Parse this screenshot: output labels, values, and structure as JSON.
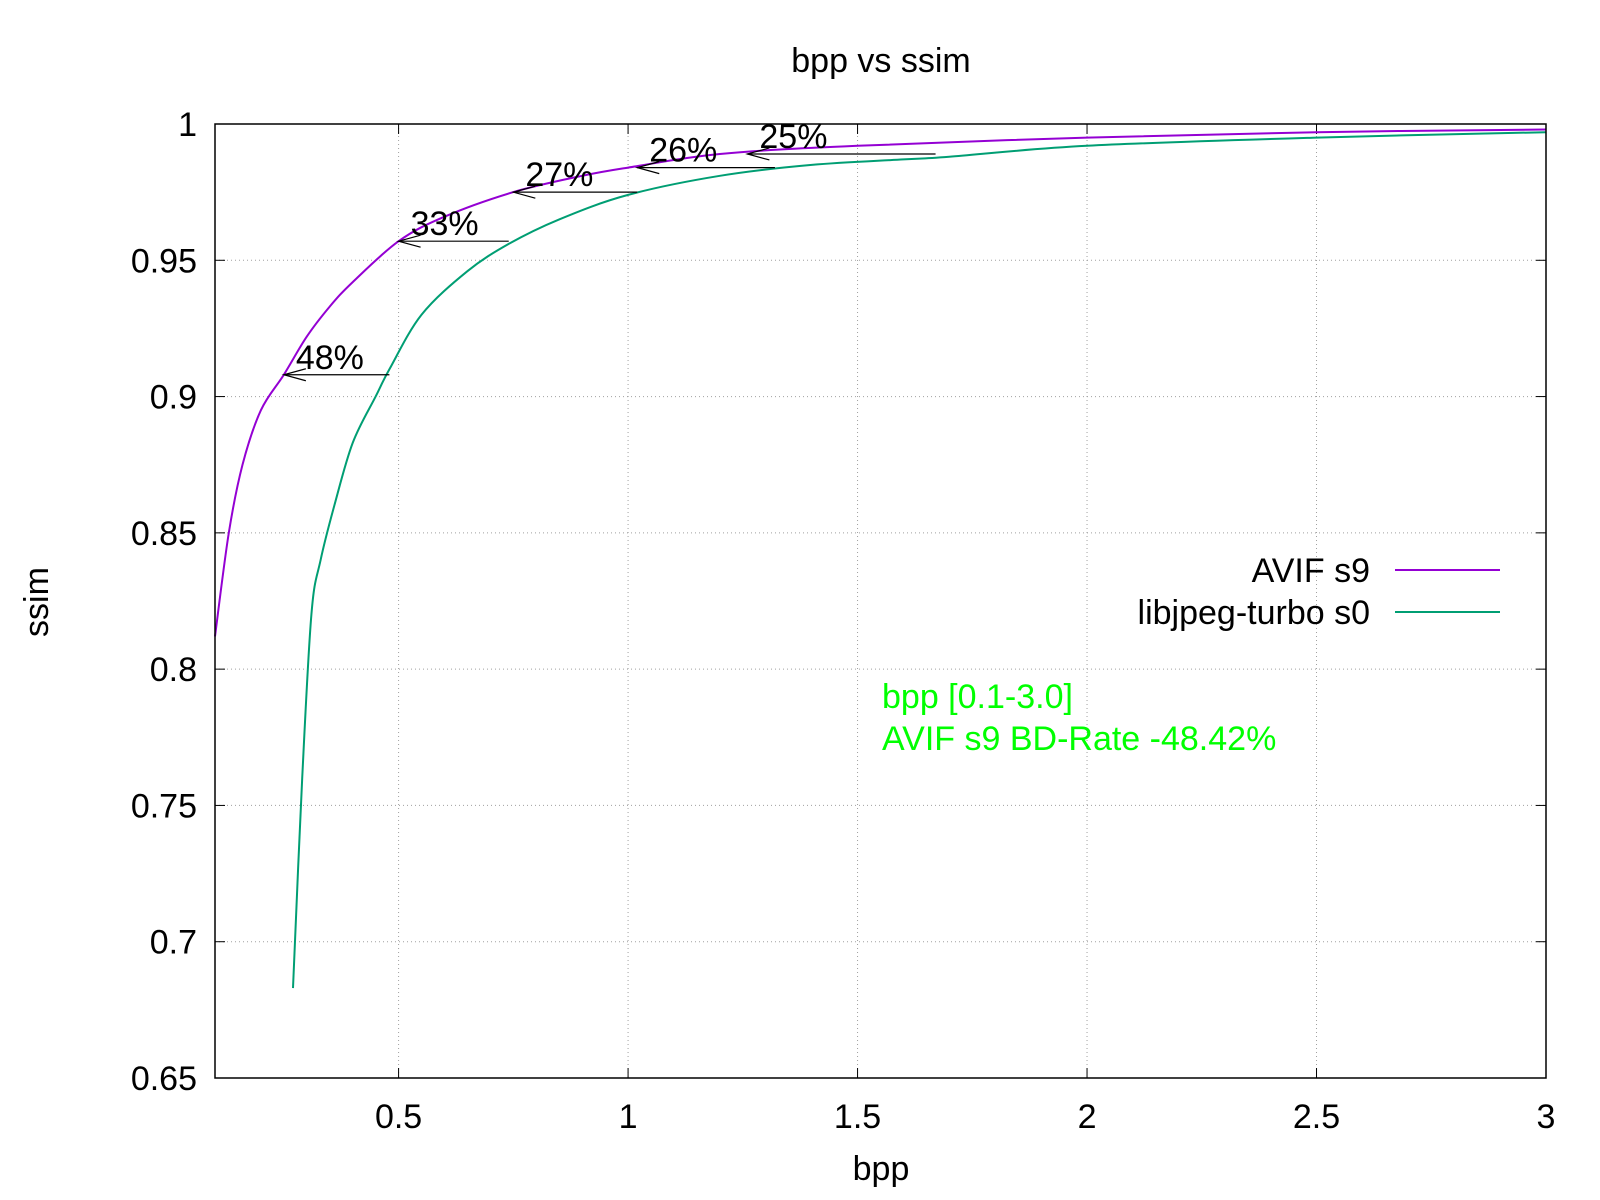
{
  "chart_data": {
    "type": "line",
    "title": "bpp vs ssim",
    "xlabel": "bpp",
    "ylabel": "ssim",
    "xlim": [
      0.1,
      3.0
    ],
    "ylim": [
      0.65,
      1.0
    ],
    "xticks": [
      "0.5",
      "1",
      "1.5",
      "2",
      "2.5",
      "3"
    ],
    "xtick_values": [
      0.5,
      1,
      1.5,
      2,
      2.5,
      3
    ],
    "yticks": [
      "0.65",
      "0.7",
      "0.75",
      "0.8",
      "0.85",
      "0.9",
      "0.95",
      "1"
    ],
    "ytick_values": [
      0.65,
      0.7,
      0.75,
      0.8,
      0.85,
      0.9,
      0.95,
      1.0
    ],
    "grid": true,
    "legend_position": "right",
    "series": [
      {
        "name": "AVIF s9",
        "color": "#9400d3",
        "x": [
          0.1,
          0.13,
          0.16,
          0.2,
          0.25,
          0.3,
          0.35,
          0.4,
          0.5,
          0.6,
          0.75,
          0.9,
          1.0,
          1.2,
          1.5,
          2.0,
          2.5,
          3.0
        ],
        "y": [
          0.812,
          0.85,
          0.875,
          0.895,
          0.908,
          0.922,
          0.933,
          0.942,
          0.957,
          0.966,
          0.975,
          0.981,
          0.984,
          0.989,
          0.992,
          0.995,
          0.997,
          0.998
        ]
      },
      {
        "name": "libjpeg-turbo s0",
        "color": "#009e73",
        "x": [
          0.27,
          0.29,
          0.31,
          0.33,
          0.36,
          0.4,
          0.45,
          0.48,
          0.55,
          0.65,
          0.74,
          0.85,
          1.0,
          1.2,
          1.4,
          1.6,
          1.7,
          2.0,
          2.5,
          3.0
        ],
        "y": [
          0.683,
          0.76,
          0.82,
          0.84,
          0.86,
          0.883,
          0.9,
          0.91,
          0.93,
          0.946,
          0.956,
          0.965,
          0.974,
          0.981,
          0.985,
          0.987,
          0.988,
          0.992,
          0.995,
          0.997
        ]
      }
    ],
    "arrows": [
      {
        "label": "48%",
        "y": 0.908,
        "x_from": 0.48,
        "x_to": 0.25
      },
      {
        "label": "33%",
        "y": 0.957,
        "x_from": 0.74,
        "x_to": 0.5
      },
      {
        "label": "27%",
        "y": 0.975,
        "x_from": 1.02,
        "x_to": 0.75
      },
      {
        "label": "26%",
        "y": 0.984,
        "x_from": 1.32,
        "x_to": 1.02
      },
      {
        "label": "25%",
        "y": 0.989,
        "x_from": 1.67,
        "x_to": 1.26
      }
    ],
    "annotation": {
      "color": "#00ff00",
      "lines": [
        "bpp [0.1-3.0]",
        "AVIF s9 BD-Rate -48.42%"
      ]
    }
  }
}
